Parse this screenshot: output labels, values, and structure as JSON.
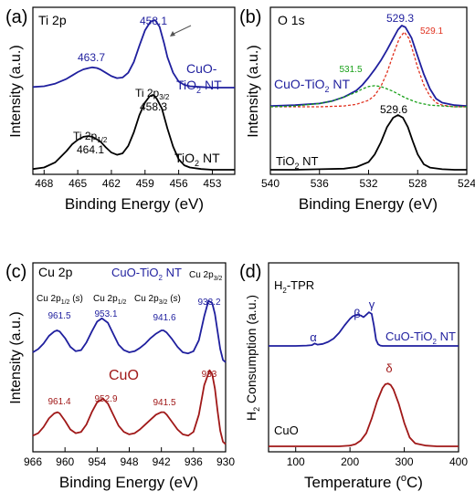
{
  "chart_data": [
    {
      "type": "line",
      "panel_label": "(a)",
      "title": "Ti 2p",
      "xlabel": "Binding Energy (eV)",
      "ylabel": "Intensity (a.u.)",
      "xlim": [
        469,
        451
      ],
      "x_ticks": [
        468,
        465,
        462,
        459,
        456,
        453
      ],
      "series": [
        {
          "name": "CuO-TiO2 NT",
          "color": "#1f1f9e",
          "x": [
            469,
            468,
            467,
            466,
            465.5,
            465,
            464.5,
            464,
            463.7,
            463.3,
            463,
            462.5,
            462,
            461.5,
            461,
            460.5,
            460,
            459.5,
            459,
            458.5,
            458.1,
            457.7,
            457.3,
            457,
            456.5,
            456,
            455.5,
            455,
            454,
            453,
            452,
            451
          ],
          "y": [
            0.01,
            0.02,
            0.06,
            0.13,
            0.18,
            0.23,
            0.27,
            0.29,
            0.3,
            0.29,
            0.27,
            0.22,
            0.17,
            0.14,
            0.15,
            0.22,
            0.38,
            0.62,
            0.85,
            0.98,
            1.0,
            0.9,
            0.66,
            0.45,
            0.22,
            0.09,
            0.04,
            0.02,
            0.01,
            0.0,
            0.0,
            0.0
          ]
        },
        {
          "name": "TiO2 NT",
          "color": "#000000",
          "x": [
            469,
            468,
            467,
            466,
            465.5,
            465,
            464.5,
            464.1,
            463.7,
            463,
            462.5,
            462,
            461.5,
            461,
            460.5,
            460,
            459.5,
            459,
            458.6,
            458.3,
            458,
            457.5,
            457,
            456.5,
            456,
            455.5,
            455,
            454,
            453,
            452,
            451
          ],
          "y": [
            0.01,
            0.03,
            0.1,
            0.25,
            0.34,
            0.4,
            0.44,
            0.45,
            0.44,
            0.38,
            0.3,
            0.23,
            0.2,
            0.22,
            0.32,
            0.5,
            0.73,
            0.9,
            0.98,
            1.0,
            0.96,
            0.82,
            0.55,
            0.31,
            0.14,
            0.06,
            0.03,
            0.01,
            0.0,
            0.0,
            0.0
          ]
        }
      ],
      "annotations": [
        "463.7",
        "458.1",
        "Ti 2p",
        "3/2",
        "458.3",
        "Ti 2p",
        "1/2",
        "464.1",
        "CuO-",
        "TiO",
        "2",
        " NT",
        "TiO",
        "2",
        " NT"
      ]
    },
    {
      "type": "line",
      "panel_label": "(b)",
      "title": "O 1s",
      "xlabel": "Binding Energy (eV)",
      "ylabel": "Intensity (a.u.)",
      "xlim": [
        540,
        524
      ],
      "x_ticks": [
        540,
        536,
        532,
        528,
        524
      ],
      "series": [
        {
          "name": "CuO-TiO2 NT",
          "color": "#1f1f9e",
          "x": [
            540,
            538,
            536,
            535,
            534,
            533,
            532.5,
            532,
            531.5,
            531,
            530.5,
            530,
            529.6,
            529.3,
            529,
            528.5,
            528,
            527.5,
            527,
            526.5,
            526,
            525,
            524
          ],
          "y": [
            0.01,
            0.02,
            0.04,
            0.07,
            0.12,
            0.2,
            0.27,
            0.36,
            0.46,
            0.57,
            0.7,
            0.84,
            0.95,
            1.0,
            0.98,
            0.85,
            0.62,
            0.4,
            0.22,
            0.1,
            0.05,
            0.02,
            0.01
          ]
        },
        {
          "name": "fit 529.1",
          "color": "#e0301e",
          "x": [
            540,
            536,
            534,
            533,
            532,
            531.5,
            531,
            530.5,
            530,
            529.5,
            529.1,
            528.7,
            528.3,
            528,
            527.5,
            527,
            526.5,
            526,
            525,
            524
          ],
          "y": [
            0.0,
            0.0,
            0.01,
            0.03,
            0.08,
            0.14,
            0.25,
            0.42,
            0.64,
            0.84,
            0.92,
            0.84,
            0.64,
            0.48,
            0.27,
            0.13,
            0.05,
            0.02,
            0.0,
            0.0
          ]
        },
        {
          "name": "fit 531.5",
          "color": "#18a018",
          "x": [
            540,
            538,
            536,
            535,
            534,
            533,
            532.5,
            532,
            531.5,
            531,
            530.5,
            530,
            529.5,
            529,
            528.5,
            528,
            527,
            526,
            525,
            524
          ],
          "y": [
            0.0,
            0.01,
            0.04,
            0.07,
            0.12,
            0.18,
            0.22,
            0.25,
            0.26,
            0.25,
            0.22,
            0.19,
            0.15,
            0.11,
            0.08,
            0.05,
            0.02,
            0.01,
            0.0,
            0.0
          ]
        },
        {
          "name": "TiO2 NT",
          "color": "#000000",
          "x": [
            540,
            538,
            536,
            534,
            533,
            532,
            531.5,
            531,
            530.5,
            530,
            529.6,
            529.2,
            528.8,
            528.4,
            528,
            527.5,
            527,
            526,
            525,
            524
          ],
          "y": [
            0.0,
            0.0,
            0.01,
            0.02,
            0.05,
            0.14,
            0.28,
            0.5,
            0.78,
            0.95,
            1.0,
            0.95,
            0.78,
            0.52,
            0.28,
            0.1,
            0.04,
            0.01,
            0.0,
            0.0
          ]
        }
      ],
      "annotations": [
        "529.3",
        "529.1",
        "531.5",
        "CuO-TiO",
        "2",
        " NT",
        "529.6",
        "TiO",
        "2",
        " NT"
      ]
    },
    {
      "type": "line",
      "panel_label": "(c)",
      "title": "Cu 2p",
      "xlabel": "Binding Energy (eV)",
      "ylabel": "Intensity (a.u.)",
      "xlim": [
        966,
        930
      ],
      "x_ticks": [
        966,
        960,
        954,
        948,
        942,
        936,
        930
      ],
      "series": [
        {
          "name": "CuO-TiO2 NT",
          "color": "#1f1f9e",
          "x": [
            966,
            965,
            964,
            963,
            962,
            961.5,
            961,
            960,
            959,
            958,
            957,
            956,
            955,
            954,
            953.1,
            952,
            951,
            950,
            949,
            948,
            947,
            946,
            945,
            944,
            943,
            942,
            941.6,
            941,
            940,
            939,
            938,
            937,
            936,
            935,
            934,
            933.2,
            932.5,
            932,
            931.5,
            931,
            930.5,
            930
          ],
          "y": [
            0.05,
            0.08,
            0.13,
            0.2,
            0.24,
            0.25,
            0.24,
            0.18,
            0.1,
            0.06,
            0.07,
            0.14,
            0.24,
            0.33,
            0.36,
            0.32,
            0.22,
            0.12,
            0.07,
            0.05,
            0.06,
            0.09,
            0.13,
            0.18,
            0.22,
            0.25,
            0.25,
            0.23,
            0.17,
            0.1,
            0.05,
            0.04,
            0.06,
            0.16,
            0.38,
            0.52,
            0.5,
            0.4,
            0.24,
            0.08,
            -0.02,
            -0.04
          ]
        },
        {
          "name": "CuO",
          "color": "#a01818",
          "x": [
            966,
            965,
            964,
            963,
            962,
            961.4,
            961,
            960,
            959,
            958,
            957,
            956,
            955,
            954,
            952.9,
            952,
            951,
            950,
            949,
            948,
            947,
            946,
            945,
            944,
            943,
            942,
            941.5,
            941,
            940,
            939,
            938,
            937,
            936,
            935,
            934,
            933,
            932.5,
            932,
            931.5,
            931,
            930.5,
            930
          ],
          "y": [
            0.05,
            0.07,
            0.12,
            0.19,
            0.23,
            0.24,
            0.23,
            0.17,
            0.1,
            0.07,
            0.08,
            0.14,
            0.24,
            0.32,
            0.35,
            0.31,
            0.22,
            0.13,
            0.08,
            0.06,
            0.07,
            0.1,
            0.14,
            0.18,
            0.22,
            0.24,
            0.24,
            0.22,
            0.16,
            0.1,
            0.06,
            0.05,
            0.08,
            0.22,
            0.46,
            0.58,
            0.55,
            0.43,
            0.25,
            0.09,
            0.0,
            -0.02
          ]
        }
      ],
      "annotations": [
        "CuO-TiO",
        "2",
        " NT",
        "Cu 2p",
        "1/2",
        " (",
        "s",
        ")",
        "Cu 2p",
        "1/2",
        "Cu 2p",
        "3/2",
        " (",
        "s",
        ")",
        "Cu 2p",
        "3/2",
        "961.5",
        "953.1",
        "941.6",
        "933.2",
        "CuO",
        "961.4",
        "952.9",
        "941.5",
        "933"
      ]
    },
    {
      "type": "line",
      "panel_label": "(d)",
      "title": "H2-TPR",
      "xlabel": "Temperature (oC)",
      "ylabel": "H2 Consumption (a.u.)",
      "xlim": [
        50,
        400
      ],
      "x_ticks": [
        100,
        200,
        300,
        400
      ],
      "series": [
        {
          "name": "CuO-TiO2 NT",
          "color": "#1f1f9e",
          "x": [
            50,
            80,
            100,
            120,
            130,
            135,
            140,
            150,
            160,
            170,
            180,
            190,
            200,
            205,
            210,
            215,
            220,
            225,
            230,
            235,
            240,
            244,
            248,
            252,
            256,
            260,
            270,
            280,
            300,
            350,
            400
          ],
          "y": [
            0.0,
            0.0,
            0.0,
            0.01,
            0.02,
            0.06,
            0.03,
            0.05,
            0.1,
            0.18,
            0.32,
            0.5,
            0.66,
            0.72,
            0.75,
            0.76,
            0.74,
            0.7,
            0.76,
            0.82,
            0.78,
            0.5,
            0.15,
            0.04,
            0.01,
            0.0,
            0.0,
            0.0,
            0.0,
            0.0,
            0.0
          ]
        },
        {
          "name": "CuO",
          "color": "#a01818",
          "x": [
            50,
            100,
            150,
            180,
            200,
            210,
            220,
            230,
            240,
            250,
            260,
            265,
            270,
            275,
            280,
            290,
            300,
            310,
            320,
            340,
            360,
            400
          ],
          "y": [
            0.0,
            0.0,
            0.0,
            0.0,
            0.01,
            0.03,
            0.08,
            0.18,
            0.38,
            0.62,
            0.8,
            0.85,
            0.86,
            0.84,
            0.78,
            0.58,
            0.32,
            0.12,
            0.04,
            0.01,
            0.0,
            0.0
          ]
        }
      ],
      "annotations": [
        "H",
        "2",
        "-TPR",
        "α",
        "β",
        "γ",
        "CuO-TiO",
        "2",
        " NT",
        "δ",
        "CuO"
      ],
      "xlabel_parts": [
        "Temperature (",
        "o",
        "C)"
      ],
      "ylabel_parts": [
        "H",
        "2",
        " Consumption (a.u.)"
      ]
    }
  ],
  "panel_titles": [
    "(a)",
    "(b)",
    "(c)",
    "(d)"
  ]
}
